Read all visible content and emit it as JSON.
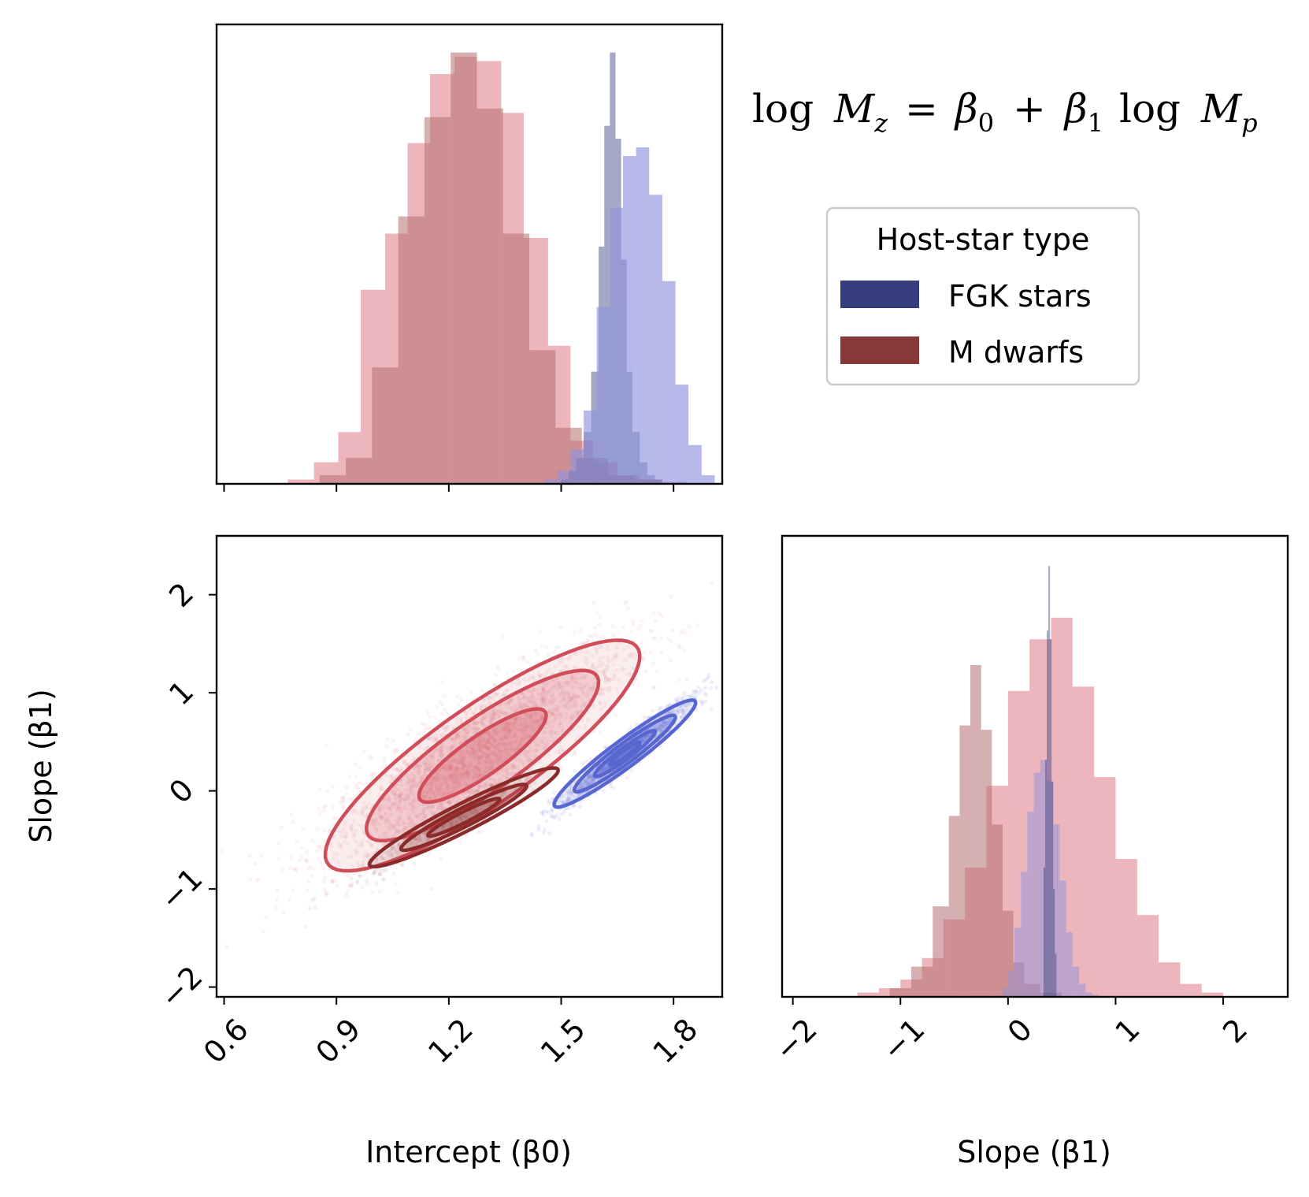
{
  "chart_data": {
    "type": "corner",
    "title": "log M_z = β_0 + β_1 log M_p",
    "title_parts": {
      "log1": "log",
      "Mz_M": "M",
      "Mz_sub": "z",
      "eq": "=",
      "b0": "β",
      "b0_sub": "0",
      "plus": "+",
      "b1": "β",
      "b1_sub": "1",
      "log2": "log",
      "Mp_M": "M",
      "Mp_sub": "p"
    },
    "legend": {
      "title": "Host-star type",
      "placement": "upper-right",
      "entries": [
        {
          "label": "FGK stars",
          "color": "#363d7c"
        },
        {
          "label": "M dwarfs",
          "color": "#873939"
        }
      ]
    },
    "colors": {
      "fgk_light": "#8f93dd",
      "fgk_dark": "#1e2680",
      "m_light": "#dc6b7a",
      "m_dark": "#7a2222",
      "m_contour": "#d04d5a",
      "m_contour_dark": "#8a2a2a",
      "fgk_contour": "#5866cf"
    },
    "panels": {
      "beta0_hist": {
        "xlim": [
          0.58,
          1.93
        ],
        "xticks": [
          0.6,
          0.9,
          1.2,
          1.5,
          1.8
        ],
        "series": [
          {
            "name": "M dwarfs (light)",
            "color": "#dc6b7a",
            "alpha": 0.5,
            "bins": [
              0.77,
              0.84,
              0.905,
              0.965,
              1.03,
              1.09,
              1.15,
              1.215,
              1.275,
              1.34,
              1.4,
              1.465,
              1.525,
              1.585,
              1.65,
              1.71,
              1.77,
              1.835
            ],
            "counts": [
              0.01,
              0.05,
              0.12,
              0.45,
              0.58,
              0.79,
              0.95,
              0.99,
              0.98,
              0.86,
              0.57,
              0.32,
              0.1,
              0.05,
              0.02,
              0.01,
              0.005
            ]
          },
          {
            "name": "M dwarfs (dark)",
            "color": "#b57070",
            "alpha": 0.55,
            "bins": [
              0.855,
              0.925,
              0.995,
              1.065,
              1.135,
              1.205,
              1.275,
              1.345,
              1.415,
              1.485,
              1.555,
              1.625,
              1.695,
              1.765
            ],
            "counts": [
              0.02,
              0.06,
              0.27,
              0.62,
              0.85,
              1.0,
              0.87,
              0.58,
              0.31,
              0.13,
              0.06,
              0.02,
              0.01
            ]
          },
          {
            "name": "FGK stars (dark)",
            "color": "#363d7c",
            "alpha": 0.45,
            "bins": [
              1.5,
              1.52,
              1.54,
              1.56,
              1.58,
              1.6,
              1.615,
              1.63,
              1.645,
              1.66,
              1.675,
              1.69,
              1.71,
              1.73,
              1.75,
              1.77
            ],
            "counts": [
              0.01,
              0.03,
              0.06,
              0.12,
              0.26,
              0.55,
              0.83,
              1.0,
              0.8,
              0.52,
              0.26,
              0.12,
              0.05,
              0.02,
              0.01
            ]
          },
          {
            "name": "FGK stars (light)",
            "color": "#8f93dd",
            "alpha": 0.65,
            "bins": [
              1.455,
              1.49,
              1.525,
              1.56,
              1.595,
              1.63,
              1.665,
              1.7,
              1.735,
              1.77,
              1.805,
              1.84,
              1.875,
              1.91
            ],
            "counts": [
              0.01,
              0.03,
              0.08,
              0.17,
              0.41,
              0.64,
              0.76,
              0.78,
              0.67,
              0.47,
              0.23,
              0.09,
              0.02
            ]
          }
        ]
      },
      "beta1_hist": {
        "xlim": [
          -2.1,
          2.6
        ],
        "xticks": [
          -2,
          -1,
          0,
          1,
          2
        ],
        "xlabel": "Slope (β1)",
        "series": [
          {
            "name": "M dwarfs (light)",
            "color": "#dc6b7a",
            "alpha": 0.5,
            "bins": [
              -1.4,
              -1.2,
              -1.0,
              -0.8,
              -0.6,
              -0.4,
              -0.2,
              0.0,
              0.2,
              0.4,
              0.6,
              0.8,
              1.0,
              1.2,
              1.4,
              1.6,
              1.8,
              2.0
            ],
            "counts": [
              0.01,
              0.02,
              0.04,
              0.09,
              0.18,
              0.3,
              0.49,
              0.71,
              0.83,
              0.88,
              0.72,
              0.51,
              0.32,
              0.19,
              0.08,
              0.03,
              0.01
            ]
          },
          {
            "name": "M dwarfs (dark)",
            "color": "#b57070",
            "alpha": 0.55,
            "bins": [
              -1.1,
              -0.9,
              -0.7,
              -0.55,
              -0.45,
              -0.35,
              -0.25,
              -0.15,
              -0.05,
              0.05,
              0.15,
              0.3,
              0.5
            ],
            "counts": [
              0.02,
              0.07,
              0.21,
              0.42,
              0.63,
              0.77,
              0.62,
              0.4,
              0.2,
              0.08,
              0.03,
              0.01
            ]
          },
          {
            "name": "FGK stars (light)",
            "color": "#8f93dd",
            "alpha": 0.5,
            "bins": [
              -0.05,
              0.0,
              0.06,
              0.12,
              0.18,
              0.24,
              0.3,
              0.36,
              0.42,
              0.48,
              0.54,
              0.6,
              0.66,
              0.72,
              0.78,
              0.84
            ],
            "counts": [
              0.02,
              0.06,
              0.16,
              0.29,
              0.43,
              0.52,
              0.55,
              0.5,
              0.4,
              0.27,
              0.15,
              0.07,
              0.03,
              0.01,
              0.005
            ]
          },
          {
            "name": "FGK stars (dark)",
            "color": "#363d7c",
            "alpha": 0.45,
            "bins": [
              0.33,
              0.345,
              0.36,
              0.375,
              0.39,
              0.405,
              0.42,
              0.435,
              0.45
            ],
            "counts": [
              0.3,
              0.55,
              0.85,
              1.0,
              0.83,
              0.5,
              0.25,
              0.1
            ]
          }
        ]
      },
      "joint": {
        "xlim": [
          0.58,
          1.93
        ],
        "ylim": [
          -2.1,
          2.6
        ],
        "xticks": [
          0.6,
          0.9,
          1.2,
          1.5,
          1.8
        ],
        "yticks": [
          -2,
          -1,
          0,
          1,
          2
        ],
        "xlabel": "Intercept (β0)",
        "ylabel": "Slope (β1)",
        "clouds": [
          {
            "name": "M dwarfs (broad)",
            "color": "#d97a84",
            "center": [
              1.27,
              0.4
            ],
            "sx": 0.2,
            "sy": 0.55,
            "rho": 0.86,
            "n": 2600,
            "alpha": 0.09
          },
          {
            "name": "M dwarfs (narrow)",
            "color": "#7a2a2a",
            "center": [
              1.2,
              -0.3
            ],
            "sx": 0.13,
            "sy": 0.3,
            "rho": 0.95,
            "n": 500,
            "alpha": 0.07
          },
          {
            "name": "FGK stars",
            "color": "#7d86dd",
            "center": [
              1.67,
              0.38
            ],
            "sx": 0.09,
            "sy": 0.28,
            "rho": 0.96,
            "n": 1400,
            "alpha": 0.12
          }
        ],
        "contours": [
          {
            "name": "M dwarfs outer",
            "color": "#d04d5a",
            "center": [
              1.29,
              0.36
            ],
            "sx": 0.2,
            "sy": 0.56,
            "rho": 0.86,
            "k": [
              2.1,
              1.55,
              0.85
            ]
          },
          {
            "name": "M dwarfs narrow",
            "color": "#8a2a2a",
            "center": [
              1.24,
              -0.27
            ],
            "sx": 0.12,
            "sy": 0.24,
            "rho": 0.95,
            "k": [
              2.1,
              1.4,
              0.8
            ]
          },
          {
            "name": "FGK stars",
            "color": "#5866cf",
            "center": [
              1.67,
              0.38
            ],
            "sx": 0.09,
            "sy": 0.26,
            "rho": 0.95,
            "k": [
              2.1,
              1.5,
              0.9,
              0.45
            ]
          }
        ]
      }
    }
  }
}
